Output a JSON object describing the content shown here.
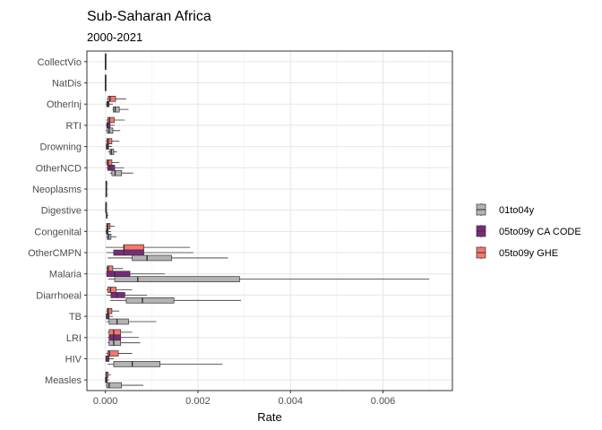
{
  "chart_data": {
    "type": "boxplot",
    "orientation": "horizontal",
    "title": "Sub-Saharan Africa",
    "subtitle": "2000-2021",
    "xlabel": "Rate",
    "ylabel": "",
    "xlim": [
      -0.0004,
      0.0075
    ],
    "x_ticks": [
      0,
      0.002,
      0.004,
      0.006
    ],
    "x_tick_labels": [
      "0.000",
      "0.002",
      "0.004",
      "0.006"
    ],
    "grid": true,
    "legend_position": "right",
    "categories": [
      "CollectVio",
      "NatDis",
      "OtherInj",
      "RTI",
      "Drowning",
      "OtherNCD",
      "Neoplasms",
      "Digestive",
      "Congenital",
      "OtherCMPN",
      "Malaria",
      "Diarrhoeal",
      "TB",
      "LRI",
      "HIV",
      "Measles"
    ],
    "series": [
      {
        "name": "05to09y GHE",
        "color": "#F8766D",
        "boxes": [
          {
            "min": 0,
            "q1": 0,
            "median": 0,
            "q3": 0,
            "max": 0
          },
          {
            "min": 0,
            "q1": 0,
            "median": 0,
            "q3": 0,
            "max": 0
          },
          {
            "min": 3e-05,
            "q1": 6e-05,
            "median": 0.0001,
            "q3": 0.00022,
            "max": 0.00045
          },
          {
            "min": 2e-05,
            "q1": 5e-05,
            "median": 9e-05,
            "q3": 0.00019,
            "max": 0.00042
          },
          {
            "min": 1e-05,
            "q1": 3e-05,
            "median": 6e-05,
            "q3": 0.00014,
            "max": 0.0003
          },
          {
            "min": 1e-05,
            "q1": 3e-05,
            "median": 6e-05,
            "q3": 0.00014,
            "max": 0.0003
          },
          {
            "min": 0,
            "q1": 1e-05,
            "median": 2e-05,
            "q3": 3e-05,
            "max": 5e-05
          },
          {
            "min": 0,
            "q1": 1e-05,
            "median": 1e-05,
            "q3": 2e-05,
            "max": 4e-05
          },
          {
            "min": 1e-05,
            "q1": 3e-05,
            "median": 5e-05,
            "q3": 0.0001,
            "max": 0.0002
          },
          {
            "min": 1e-05,
            "q1": 0.0004,
            "median": 0.0004,
            "q3": 0.00083,
            "max": 0.00183
          },
          {
            "min": 2e-05,
            "q1": 4e-05,
            "median": 6e-05,
            "q3": 0.00016,
            "max": 0.00038
          },
          {
            "min": 2e-05,
            "q1": 5e-05,
            "median": 0.00011,
            "q3": 0.00023,
            "max": 0.00058
          },
          {
            "min": 2e-05,
            "q1": 4e-05,
            "median": 6e-05,
            "q3": 0.00014,
            "max": 0.0003
          },
          {
            "min": 5e-05,
            "q1": 8e-05,
            "median": 0.00018,
            "q3": 0.00033,
            "max": 0.00058
          },
          {
            "min": 2e-05,
            "q1": 5e-05,
            "median": 9e-05,
            "q3": 0.00028,
            "max": 0.00058
          },
          {
            "min": 0,
            "q1": 1e-05,
            "median": 2e-05,
            "q3": 6e-05,
            "max": 0.00012
          }
        ]
      },
      {
        "name": "05to09y CA CODE",
        "color": "#7B2A7B",
        "boxes": [
          {
            "min": 0,
            "q1": 0,
            "median": 0,
            "q3": 0,
            "max": 0
          },
          {
            "min": 0,
            "q1": 0,
            "median": 0,
            "q3": 0,
            "max": 0
          },
          {
            "min": 1e-05,
            "q1": 3e-05,
            "median": 5e-05,
            "q3": 8e-05,
            "max": 0.00016
          },
          {
            "min": 1e-05,
            "q1": 3e-05,
            "median": 5e-05,
            "q3": 0.0001,
            "max": 0.0002
          },
          {
            "min": 1e-05,
            "q1": 2e-05,
            "median": 4e-05,
            "q3": 7e-05,
            "max": 0.00014
          },
          {
            "min": 2e-05,
            "q1": 5e-05,
            "median": 0.0001,
            "q3": 0.0002,
            "max": 0.0004
          },
          {
            "min": 0,
            "q1": 1e-05,
            "median": 2e-05,
            "q3": 3e-05,
            "max": 5e-05
          },
          {
            "min": 0,
            "q1": 1e-05,
            "median": 1e-05,
            "q3": 2e-05,
            "max": 4e-05
          },
          {
            "min": 0,
            "q1": 2e-05,
            "median": 3e-05,
            "q3": 6e-05,
            "max": 0.00012
          },
          {
            "min": 2e-05,
            "q1": 0.00018,
            "median": 0.0004,
            "q3": 0.00083,
            "max": 0.0019
          },
          {
            "min": 1e-05,
            "q1": 3e-05,
            "median": 0.0002,
            "q3": 0.00053,
            "max": 0.00128
          },
          {
            "min": 2e-05,
            "q1": 0.00012,
            "median": 0.00025,
            "q3": 0.00042,
            "max": 0.0009
          },
          {
            "min": 1e-05,
            "q1": 2e-05,
            "median": 4e-05,
            "q3": 8e-05,
            "max": 0.00016
          },
          {
            "min": 5e-05,
            "q1": 8e-05,
            "median": 0.00018,
            "q3": 0.00033,
            "max": 0.00072
          },
          {
            "min": 1e-05,
            "q1": 1e-05,
            "median": 2e-05,
            "q3": 8e-05,
            "max": 0.00018
          },
          {
            "min": 0,
            "q1": 0,
            "median": 1e-05,
            "q3": 4e-05,
            "max": 8e-05
          }
        ]
      },
      {
        "name": "01to04y",
        "color": "#B3B3B3",
        "boxes": [
          {
            "min": 0,
            "q1": 0,
            "median": 0,
            "q3": 0,
            "max": 0
          },
          {
            "min": 0,
            "q1": 0,
            "median": 0,
            "q3": 0,
            "max": 0
          },
          {
            "min": 0.00015,
            "q1": 0.00017,
            "median": 0.00021,
            "q3": 0.0003,
            "max": 0.0005
          },
          {
            "min": 1e-05,
            "q1": 4e-05,
            "median": 8e-05,
            "q3": 0.00016,
            "max": 0.00032
          },
          {
            "min": 6e-05,
            "q1": 0.0001,
            "median": 0.00013,
            "q3": 0.00018,
            "max": 0.00025
          },
          {
            "min": 0.0001,
            "q1": 0.00014,
            "median": 0.00021,
            "q3": 0.00035,
            "max": 0.0006
          },
          {
            "min": 0,
            "q1": 1e-05,
            "median": 2e-05,
            "q3": 3e-05,
            "max": 5e-05
          },
          {
            "min": 1e-05,
            "q1": 2e-05,
            "median": 3e-05,
            "q3": 4e-05,
            "max": 6e-05
          },
          {
            "min": 2e-05,
            "q1": 4e-05,
            "median": 7e-05,
            "q3": 0.00012,
            "max": 0.00024
          },
          {
            "min": 5e-05,
            "q1": 0.00058,
            "median": 0.0009,
            "q3": 0.00143,
            "max": 0.00265
          },
          {
            "min": 6e-05,
            "q1": 0.0002,
            "median": 0.0007,
            "q3": 0.0029,
            "max": 0.007
          },
          {
            "min": 0.0001,
            "q1": 0.00045,
            "median": 0.0008,
            "q3": 0.00148,
            "max": 0.00293
          },
          {
            "min": 2e-05,
            "q1": 8e-05,
            "median": 0.00025,
            "q3": 0.0005,
            "max": 0.0011
          },
          {
            "min": 5e-05,
            "q1": 8e-05,
            "median": 0.00018,
            "q3": 0.00033,
            "max": 0.00075
          },
          {
            "min": 5e-05,
            "q1": 0.00018,
            "median": 0.00058,
            "q3": 0.00118,
            "max": 0.00253
          },
          {
            "min": 1e-05,
            "q1": 3e-05,
            "median": 8e-05,
            "q3": 0.00035,
            "max": 0.00082
          }
        ]
      }
    ],
    "legend": [
      {
        "name": "01to04y",
        "color": "#B3B3B3"
      },
      {
        "name": "05to09y CA CODE",
        "color": "#7B2A7B"
      },
      {
        "name": "05to09y GHE",
        "color": "#F8766D"
      }
    ]
  }
}
